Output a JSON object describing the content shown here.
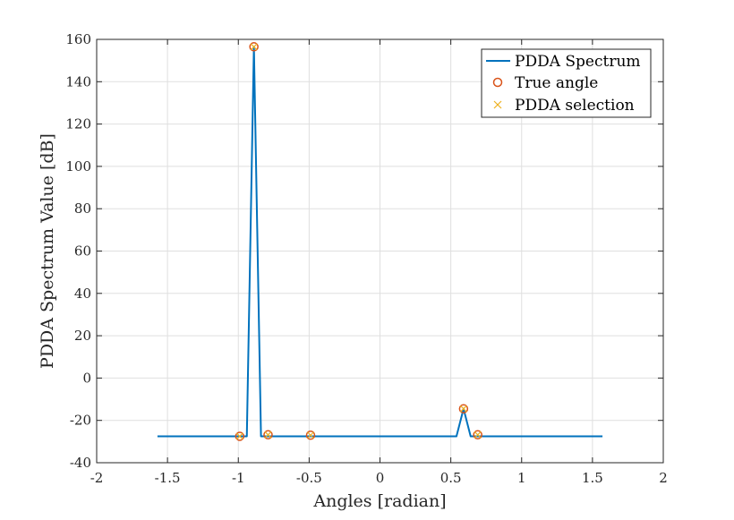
{
  "chart_data": {
    "type": "line",
    "xlabel": "Angles [radian]",
    "ylabel": "PDDA Spectrum Value [dB]",
    "xlim": [
      -2,
      2
    ],
    "ylim": [
      -40,
      160
    ],
    "xticks": [
      -2,
      -1.5,
      -1,
      -0.5,
      0,
      0.5,
      1,
      1.5,
      2
    ],
    "yticks": [
      -40,
      -20,
      0,
      20,
      40,
      60,
      80,
      100,
      120,
      140,
      160
    ],
    "grid": true,
    "legend_position": "top-right",
    "series": [
      {
        "name": "PDDA Spectrum",
        "type": "line",
        "color": "#0072BD",
        "x": [
          -1.5708,
          -0.94,
          -0.89,
          -0.84,
          -0.79,
          0.54,
          0.59,
          0.64,
          0.69,
          1.5708
        ],
        "y": [
          -27.5,
          -27.5,
          156.5,
          -27.5,
          -27.5,
          -27.5,
          -14.5,
          -27.5,
          -27.5,
          -27.5
        ]
      },
      {
        "name": "True angle",
        "type": "scatter",
        "marker": "circle",
        "color": "#D95319",
        "x": [
          -0.99,
          -0.89,
          -0.79,
          -0.49,
          0.59,
          0.69
        ],
        "y": [
          -27.5,
          156.5,
          -26.8,
          -27.0,
          -14.5,
          -26.8
        ]
      },
      {
        "name": "PDDA selection",
        "type": "scatter",
        "marker": "x",
        "color": "#EDB120",
        "x": [
          -0.99,
          -0.89,
          -0.79,
          -0.49,
          0.59,
          0.69
        ],
        "y": [
          -27.5,
          156.5,
          -26.8,
          -27.0,
          -14.5,
          -26.8
        ]
      }
    ]
  }
}
